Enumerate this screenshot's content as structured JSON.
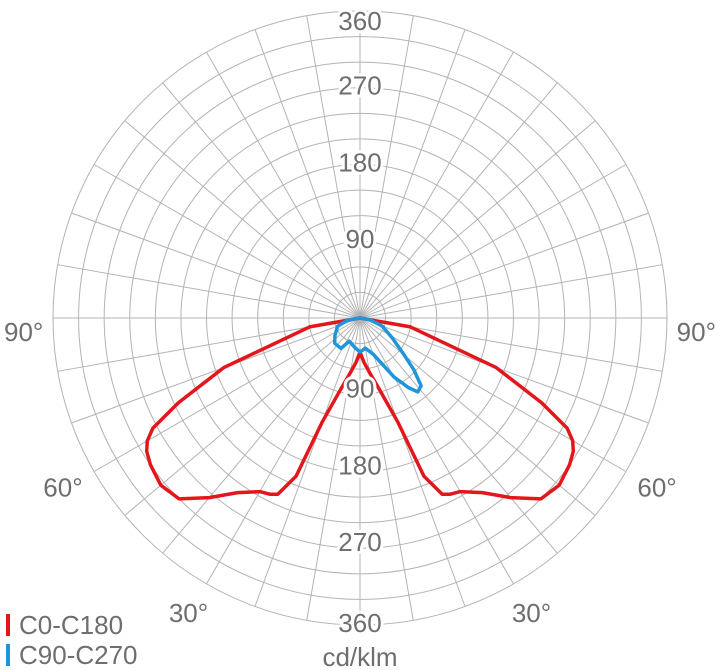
{
  "chart_data": {
    "type": "polar",
    "unit": "cd/klm",
    "radial_max": 360,
    "radial_ticks": [
      90,
      180,
      270,
      360
    ],
    "angle_labels": [
      {
        "text": "90°",
        "angle": -90
      },
      {
        "text": "90°",
        "angle": 90
      },
      {
        "text": "60°",
        "angle": -60
      },
      {
        "text": "60°",
        "angle": 60
      },
      {
        "text": "30°",
        "angle": -30
      },
      {
        "text": "30°",
        "angle": 30
      }
    ],
    "series": [
      {
        "name": "C0-C180",
        "color": "#e3161c",
        "points": [
          [
            -90,
            0
          ],
          [
            -80,
            60
          ],
          [
            -70,
            170
          ],
          [
            -65,
            235
          ],
          [
            -62,
            275
          ],
          [
            -60,
            288
          ],
          [
            -58,
            295
          ],
          [
            -55,
            300
          ],
          [
            -50,
            305
          ],
          [
            -45,
            300
          ],
          [
            -40,
            275
          ],
          [
            -35,
            250
          ],
          [
            -30,
            235
          ],
          [
            -27,
            232
          ],
          [
            -25,
            228
          ],
          [
            -22,
            200
          ],
          [
            -20,
            130
          ],
          [
            -15,
            86
          ],
          [
            -10,
            65
          ],
          [
            -5,
            52
          ],
          [
            -1,
            42
          ],
          [
            0,
            40
          ],
          [
            1,
            42
          ],
          [
            5,
            52
          ],
          [
            10,
            65
          ],
          [
            15,
            86
          ],
          [
            20,
            130
          ],
          [
            22,
            200
          ],
          [
            25,
            228
          ],
          [
            27,
            232
          ],
          [
            30,
            235
          ],
          [
            35,
            250
          ],
          [
            40,
            275
          ],
          [
            45,
            300
          ],
          [
            50,
            305
          ],
          [
            55,
            300
          ],
          [
            58,
            295
          ],
          [
            60,
            288
          ],
          [
            62,
            275
          ],
          [
            65,
            235
          ],
          [
            70,
            170
          ],
          [
            80,
            60
          ],
          [
            90,
            0
          ]
        ]
      },
      {
        "name": "C90-C270",
        "color": "#1f95db",
        "points": [
          [
            -90,
            0
          ],
          [
            -80,
            15
          ],
          [
            -70,
            28
          ],
          [
            -55,
            36
          ],
          [
            -45,
            42
          ],
          [
            -32,
            42
          ],
          [
            -25,
            30
          ],
          [
            -10,
            35
          ],
          [
            0,
            40
          ],
          [
            10,
            36
          ],
          [
            20,
            45
          ],
          [
            30,
            80
          ],
          [
            35,
            100
          ],
          [
            38,
            110
          ],
          [
            42,
            107
          ],
          [
            46,
            88
          ],
          [
            50,
            68
          ],
          [
            58,
            45
          ],
          [
            70,
            28
          ],
          [
            80,
            12
          ],
          [
            90,
            0
          ]
        ]
      }
    ]
  }
}
